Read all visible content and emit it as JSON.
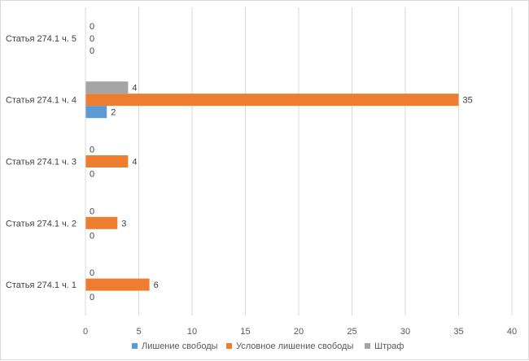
{
  "chart_data": {
    "type": "bar",
    "orientation": "horizontal",
    "categories": [
      "Статья 274.1 ч. 1",
      "Статья 274.1 ч. 2",
      "Статья 274.1 ч. 3",
      "Статья 274.1 ч. 4",
      "Статья 274.1 ч. 5"
    ],
    "series": [
      {
        "name": "Лишение свободы",
        "color": "#5b9bd5",
        "values": [
          0,
          0,
          0,
          2,
          0
        ]
      },
      {
        "name": "Условное лишение свободы",
        "color": "#ed7d31",
        "values": [
          6,
          3,
          4,
          35,
          0
        ]
      },
      {
        "name": "Штраф",
        "color": "#a5a5a5",
        "values": [
          0,
          0,
          0,
          4,
          0
        ]
      }
    ],
    "xlim": [
      0,
      40
    ],
    "xticks": [
      0,
      5,
      10,
      15,
      20,
      25,
      30,
      35,
      40
    ],
    "grid": true,
    "legend": "bottom",
    "title": "",
    "xlabel": "",
    "ylabel": ""
  }
}
